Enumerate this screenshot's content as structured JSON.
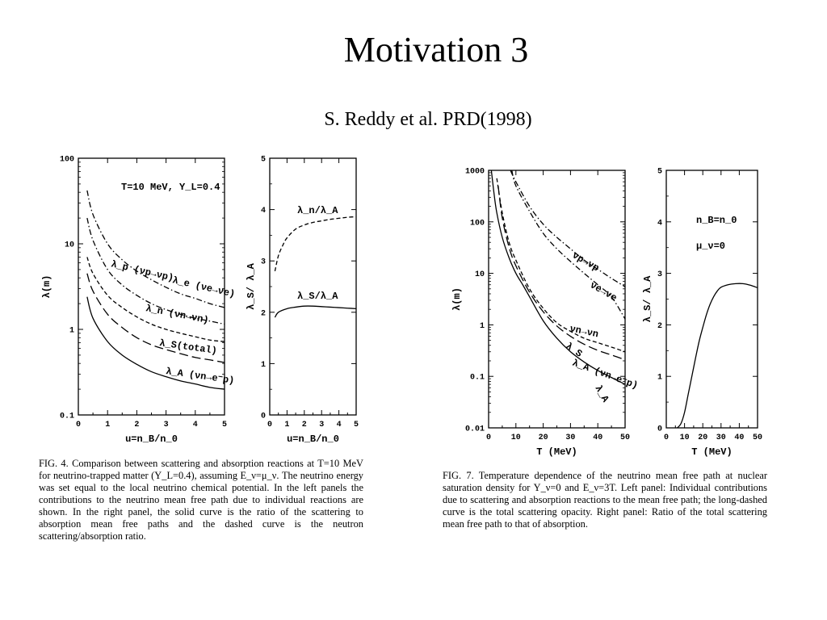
{
  "slide": {
    "title": "Motivation 3",
    "subtitle": "S. Reddy et al. PRD(1998)"
  },
  "fig4": {
    "caption": "FIG. 4. Comparison between scattering and absorption reactions at T=10 MeV for neutrino-trapped matter (Y_L=0.4), assuming E_ν=μ_ν. The neutrino energy was set equal to the local neutrino chemical potential. In the left panels the contributions to the neutrino mean free path due to individual reactions are shown. In the right panel, the solid curve is the ratio of the scattering to absorption mean free paths and the dashed curve is the neutron scattering/absorption ratio.",
    "annotation": "T=10 MeV, Y_L=0.4"
  },
  "fig7": {
    "caption": "FIG. 7. Temperature dependence of the neutrino mean free path at nuclear saturation density for Y_ν=0 and E_ν=3T. Left panel: Individual contributions due to scattering and absorption reactions to the mean free path; the long-dashed curve is the total scattering opacity. Right panel: Ratio of the total scattering mean free path to that of absorption.",
    "annotation_density": "n_B=n_0",
    "annotation_mu": "μ_ν=0"
  },
  "chart_data": [
    {
      "id": "fig4-left",
      "type": "line",
      "xlabel": "u=n_B/n_0",
      "ylabel": "λ(m)",
      "xlim": [
        0,
        5
      ],
      "ylim": [
        0.1,
        100
      ],
      "yscale": "log",
      "xticks": [
        "0",
        "1",
        "2",
        "3",
        "4",
        "5"
      ],
      "yticks": [
        "0.1",
        "1",
        "10",
        "100"
      ],
      "series": [
        {
          "name": "λ_e (νe→νe)",
          "style": "dash-dot",
          "x": [
            0.3,
            0.5,
            1,
            1.5,
            2,
            2.5,
            3,
            3.5,
            4,
            4.5,
            5
          ],
          "y": [
            42,
            22,
            10,
            6.5,
            4.8,
            3.8,
            3.1,
            2.6,
            2.3,
            2.0,
            1.8
          ]
        },
        {
          "name": "λ_p (νp→νp)",
          "style": "dash-dot",
          "x": [
            0.3,
            0.5,
            1,
            1.5,
            2,
            2.5,
            3,
            3.5,
            4,
            4.5,
            5
          ],
          "y": [
            20,
            11,
            5,
            3.3,
            2.5,
            2.0,
            1.7,
            1.5,
            1.35,
            1.25,
            1.15
          ]
        },
        {
          "name": "λ_n (νn→νn)",
          "style": "dashed",
          "x": [
            0.3,
            0.5,
            1,
            1.5,
            2,
            2.5,
            3,
            3.5,
            4,
            4.5,
            5
          ],
          "y": [
            7,
            4.5,
            2.5,
            1.8,
            1.4,
            1.15,
            1.0,
            0.9,
            0.82,
            0.75,
            0.72
          ]
        },
        {
          "name": "λ_S(total)",
          "style": "long-dashed",
          "x": [
            0.3,
            0.5,
            1,
            1.5,
            2,
            2.5,
            3,
            3.5,
            4,
            4.5,
            5
          ],
          "y": [
            4.5,
            2.8,
            1.5,
            1.05,
            0.8,
            0.66,
            0.58,
            0.52,
            0.47,
            0.44,
            0.41
          ]
        },
        {
          "name": "λ_A (νn→e⁻p)",
          "style": "solid",
          "x": [
            0.3,
            0.5,
            1,
            1.5,
            2,
            2.5,
            3,
            3.5,
            4,
            4.5,
            5
          ],
          "y": [
            2.4,
            1.35,
            0.72,
            0.5,
            0.39,
            0.32,
            0.28,
            0.25,
            0.23,
            0.21,
            0.2
          ]
        }
      ]
    },
    {
      "id": "fig4-right",
      "type": "line",
      "xlabel": "u=n_B/n_0",
      "ylabel": "λ_S/ λ_A",
      "xlim": [
        0,
        5
      ],
      "ylim": [
        0,
        5
      ],
      "xticks": [
        "0",
        "1",
        "2",
        "3",
        "4",
        "5"
      ],
      "yticks": [
        "0",
        "1",
        "2",
        "3",
        "4",
        "5"
      ],
      "series": [
        {
          "name": "λ_n/λ_A",
          "style": "dashed",
          "x": [
            0.3,
            0.5,
            0.75,
            1,
            1.5,
            2,
            2.5,
            3,
            3.5,
            4,
            4.5,
            5
          ],
          "y": [
            2.8,
            3.1,
            3.3,
            3.45,
            3.62,
            3.7,
            3.75,
            3.78,
            3.81,
            3.83,
            3.85,
            3.86
          ]
        },
        {
          "name": "λ_S/λ_A",
          "style": "solid",
          "x": [
            0.3,
            0.5,
            1,
            1.5,
            2,
            2.5,
            3,
            3.5,
            4,
            4.5,
            5
          ],
          "y": [
            1.9,
            2.0,
            2.07,
            2.1,
            2.12,
            2.12,
            2.11,
            2.1,
            2.09,
            2.08,
            2.07
          ]
        }
      ]
    },
    {
      "id": "fig7-left",
      "type": "line",
      "xlabel": "T (MeV)",
      "ylabel": "λ(m)",
      "xlim": [
        0,
        50
      ],
      "ylim": [
        0.01,
        1000
      ],
      "yscale": "log",
      "xticks": [
        "0",
        "10",
        "20",
        "30",
        "40",
        "50"
      ],
      "yticks": [
        "0.01",
        "0.1",
        "1",
        "10",
        "100",
        "1000"
      ],
      "series": [
        {
          "name": "νp→νp",
          "style": "dash-dot",
          "x": [
            8,
            10,
            15,
            20,
            25,
            30,
            35,
            40,
            45,
            50
          ],
          "y": [
            1000,
            600,
            200,
            90,
            50,
            30,
            18,
            12,
            8,
            5.5
          ]
        },
        {
          "name": "νe→νe",
          "style": "dash-dot",
          "x": [
            8.5,
            10,
            15,
            20,
            25,
            30,
            35,
            40,
            45,
            50
          ],
          "y": [
            1000,
            500,
            160,
            60,
            30,
            17,
            10,
            6,
            3.5,
            1.3
          ]
        },
        {
          "name": "νn→νn",
          "style": "dashed",
          "x": [
            3,
            5,
            7.5,
            10,
            15,
            20,
            25,
            30,
            35,
            40,
            45,
            50
          ],
          "y": [
            700,
            150,
            40,
            18,
            5,
            2.1,
            1.1,
            0.75,
            0.55,
            0.45,
            0.37,
            0.3
          ]
        },
        {
          "name": "λ_S",
          "style": "long-dashed",
          "x": [
            3.5,
            5,
            7.5,
            10,
            15,
            20,
            25,
            30,
            35,
            40,
            45,
            50
          ],
          "y": [
            500,
            120,
            32,
            14,
            4.3,
            1.8,
            0.95,
            0.6,
            0.42,
            0.32,
            0.26,
            0.21
          ]
        },
        {
          "name": "λ_A (νn→e⁻p)",
          "style": "solid",
          "x": [
            1,
            2,
            3,
            5,
            7.5,
            10,
            12.5,
            15,
            20,
            25,
            30,
            35,
            40,
            45,
            50
          ],
          "y": [
            1000,
            350,
            150,
            50,
            20,
            10,
            6,
            3.5,
            1.2,
            0.55,
            0.3,
            0.19,
            0.13,
            0.095,
            0.07
          ]
        }
      ]
    },
    {
      "id": "fig7-right",
      "type": "line",
      "xlabel": "T (MeV)",
      "ylabel": "λ_S/ λ_A",
      "xlim": [
        0,
        50
      ],
      "ylim": [
        0,
        5
      ],
      "xticks": [
        "0",
        "10",
        "20",
        "30",
        "40",
        "50"
      ],
      "yticks": [
        "0",
        "1",
        "2",
        "3",
        "4",
        "5"
      ],
      "series": [
        {
          "name": "",
          "style": "solid",
          "x": [
            6,
            8,
            10,
            12,
            14,
            16,
            18,
            20,
            22,
            24,
            26,
            28,
            30,
            34,
            38,
            42,
            46,
            50
          ],
          "y": [
            0,
            0.08,
            0.3,
            0.65,
            1.0,
            1.35,
            1.68,
            1.95,
            2.2,
            2.4,
            2.55,
            2.66,
            2.73,
            2.78,
            2.8,
            2.8,
            2.77,
            2.72
          ]
        }
      ]
    }
  ]
}
